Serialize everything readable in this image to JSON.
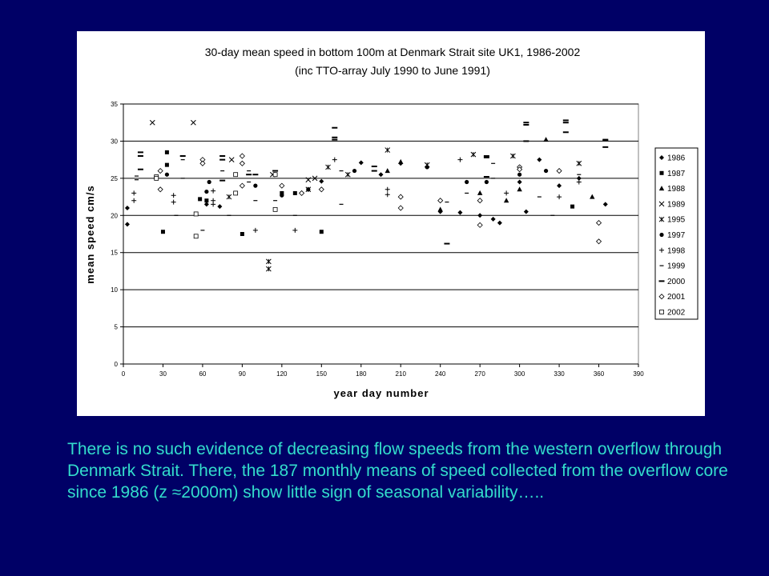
{
  "caption": "There is no such evidence of decreasing flow speeds from the western overflow through Denmark Strait. There, the 187 monthly means of speed collected from the overflow core since 1986 (z ≈2000m) show little sign of seasonal variability…..",
  "chart_data": {
    "type": "scatter",
    "title": "30-day mean speed in bottom 100m at Denmark Strait site UK1, 1986-2002",
    "subtitle": "(inc TTO-array July 1990 to June 1991)",
    "xlabel": "year day number",
    "ylabel": "mean speed cm/s",
    "xlim": [
      0,
      390
    ],
    "ylim": [
      0,
      35
    ],
    "xticks": [
      0,
      30,
      60,
      90,
      120,
      150,
      180,
      210,
      240,
      270,
      300,
      330,
      360,
      390
    ],
    "yticks": [
      0,
      5,
      10,
      15,
      20,
      25,
      30,
      35
    ],
    "grid": "horizontal",
    "legend_position": "right",
    "series": [
      {
        "name": "1986",
        "marker": "diamond-filled",
        "points": [
          [
            3,
            21
          ],
          [
            3,
            18.8
          ],
          [
            63,
            21.5
          ],
          [
            73,
            21.2
          ],
          [
            90,
            24
          ],
          [
            150,
            24.6
          ],
          [
            180,
            27.1
          ],
          [
            195,
            25.5
          ],
          [
            210,
            27
          ],
          [
            240,
            20.5
          ],
          [
            255,
            20.4
          ],
          [
            270,
            20
          ],
          [
            280,
            19.5
          ],
          [
            285,
            19
          ],
          [
            300,
            24.5
          ],
          [
            305,
            20.5
          ],
          [
            315,
            27.5
          ],
          [
            330,
            24
          ],
          [
            345,
            25
          ],
          [
            365,
            21.5
          ]
        ]
      },
      {
        "name": "1987",
        "marker": "square-filled",
        "points": [
          [
            30,
            17.8
          ],
          [
            33,
            26.8
          ],
          [
            33,
            28.5
          ],
          [
            58,
            22.2
          ],
          [
            63,
            22
          ],
          [
            90,
            17.5
          ],
          [
            120,
            23
          ],
          [
            130,
            23
          ],
          [
            150,
            17.8
          ],
          [
            340,
            21.2
          ]
        ]
      },
      {
        "name": "1988",
        "marker": "triangle-filled",
        "points": [
          [
            200,
            26
          ],
          [
            210,
            27.2
          ],
          [
            240,
            20.8
          ],
          [
            270,
            23
          ],
          [
            290,
            22
          ],
          [
            300,
            23.5
          ],
          [
            320,
            30.2
          ],
          [
            355,
            22.5
          ]
        ]
      },
      {
        "name": "1989",
        "marker": "x",
        "points": [
          [
            22,
            32.5
          ],
          [
            53,
            32.5
          ],
          [
            82,
            27.5
          ],
          [
            113,
            25.5
          ],
          [
            140,
            24.8
          ],
          [
            145,
            25
          ]
        ]
      },
      {
        "name": "1995",
        "marker": "star",
        "points": [
          [
            80,
            22.5
          ],
          [
            110,
            13.8
          ],
          [
            110,
            12.8
          ],
          [
            140,
            23.5
          ],
          [
            155,
            26.5
          ],
          [
            170,
            25.5
          ],
          [
            200,
            28.8
          ],
          [
            230,
            26.8
          ],
          [
            265,
            28.2
          ],
          [
            295,
            28
          ],
          [
            345,
            27
          ]
        ]
      },
      {
        "name": "1997",
        "marker": "circle-filled",
        "points": [
          [
            33,
            25.5
          ],
          [
            63,
            23.2
          ],
          [
            65,
            24.5
          ],
          [
            100,
            24
          ],
          [
            120,
            22.7
          ],
          [
            140,
            23.5
          ],
          [
            175,
            26
          ],
          [
            230,
            26.5
          ],
          [
            260,
            24.5
          ],
          [
            275,
            24.5
          ],
          [
            300,
            25.5
          ],
          [
            320,
            26
          ]
        ]
      },
      {
        "name": "1998",
        "marker": "plus",
        "points": [
          [
            8,
            23
          ],
          [
            8,
            22
          ],
          [
            38,
            22.7
          ],
          [
            38,
            21.8
          ],
          [
            68,
            23.3
          ],
          [
            68,
            22
          ],
          [
            68,
            21.5
          ],
          [
            100,
            18
          ],
          [
            130,
            18
          ],
          [
            160,
            27.5
          ],
          [
            200,
            22.8
          ],
          [
            200,
            23.5
          ],
          [
            255,
            27.5
          ],
          [
            290,
            23
          ],
          [
            330,
            22.5
          ],
          [
            345,
            24.5
          ]
        ]
      },
      {
        "name": "1999",
        "marker": "dash-short",
        "points": [
          [
            10,
            24.8
          ],
          [
            10,
            25.3
          ],
          [
            40,
            20
          ],
          [
            45,
            25
          ],
          [
            45,
            27.5
          ],
          [
            60,
            18
          ],
          [
            75,
            26
          ],
          [
            80,
            20
          ],
          [
            95,
            24.5
          ],
          [
            95,
            26
          ],
          [
            100,
            22
          ],
          [
            115,
            22
          ],
          [
            130,
            20
          ],
          [
            165,
            26
          ],
          [
            165,
            21.5
          ],
          [
            195,
            25.5
          ],
          [
            245,
            21.8
          ],
          [
            260,
            23
          ],
          [
            280,
            27
          ],
          [
            280,
            25
          ],
          [
            315,
            22.5
          ],
          [
            325,
            20
          ],
          [
            345,
            25.5
          ]
        ]
      },
      {
        "name": "2000",
        "marker": "dash-long",
        "points": [
          [
            13,
            28.5
          ],
          [
            13,
            28
          ],
          [
            13,
            26.2
          ],
          [
            45,
            28
          ],
          [
            75,
            28
          ],
          [
            75,
            27.5
          ],
          [
            75,
            24.7
          ],
          [
            95,
            25.5
          ],
          [
            100,
            25.5
          ],
          [
            115,
            26
          ],
          [
            160,
            31.8
          ],
          [
            160,
            30.5
          ],
          [
            160,
            30.2
          ],
          [
            190,
            26
          ],
          [
            190,
            26.6
          ],
          [
            245,
            16.2
          ],
          [
            275,
            28
          ],
          [
            275,
            27.8
          ],
          [
            275,
            25.2
          ],
          [
            305,
            32.5
          ],
          [
            305,
            32.2
          ],
          [
            305,
            30
          ],
          [
            335,
            32.8
          ],
          [
            335,
            32.5
          ],
          [
            335,
            31.2
          ],
          [
            365,
            30.2
          ],
          [
            365,
            30.1
          ],
          [
            365,
            29.2
          ]
        ]
      },
      {
        "name": "2001",
        "marker": "diamond-open",
        "points": [
          [
            28,
            26
          ],
          [
            28,
            23.5
          ],
          [
            60,
            27.5
          ],
          [
            60,
            27
          ],
          [
            90,
            28
          ],
          [
            90,
            27
          ],
          [
            90,
            24
          ],
          [
            120,
            24
          ],
          [
            135,
            23
          ],
          [
            150,
            23.5
          ],
          [
            210,
            22.5
          ],
          [
            210,
            21
          ],
          [
            240,
            22
          ],
          [
            270,
            18.7
          ],
          [
            270,
            22
          ],
          [
            300,
            26.5
          ],
          [
            300,
            26.2
          ],
          [
            330,
            26
          ],
          [
            360,
            19
          ],
          [
            360,
            16.5
          ]
        ]
      },
      {
        "name": "2002",
        "marker": "square-open",
        "points": [
          [
            25,
            25.2
          ],
          [
            25,
            25
          ],
          [
            55,
            20.2
          ],
          [
            55,
            17.2
          ],
          [
            85,
            25.5
          ],
          [
            85,
            23
          ],
          [
            115,
            25.5
          ],
          [
            115,
            20.8
          ]
        ]
      }
    ]
  }
}
